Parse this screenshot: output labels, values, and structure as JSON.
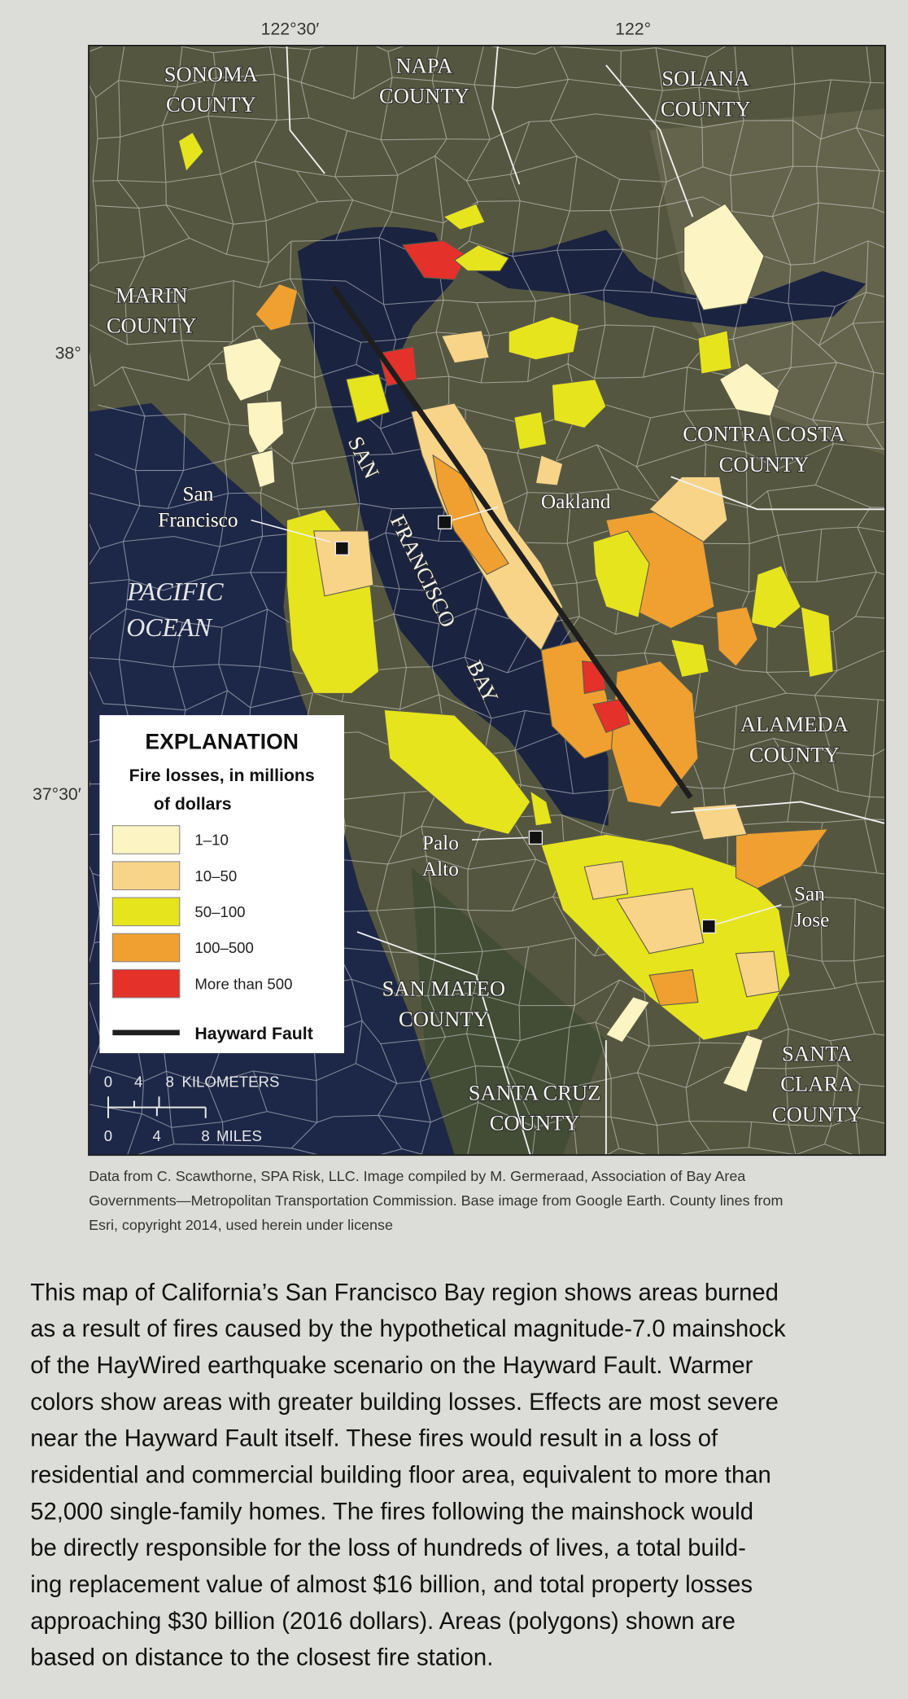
{
  "map": {
    "longitude_labels": [
      "122°30′",
      "122°"
    ],
    "latitude_labels": [
      "38°",
      "37°30′"
    ],
    "county_labels": [
      [
        "SONOMA",
        "COUNTY"
      ],
      [
        "NAPA",
        "COUNTY"
      ],
      [
        "SOLANA",
        "COUNTY"
      ],
      [
        "MARIN",
        "COUNTY"
      ],
      [
        "CONTRA COSTA",
        "COUNTY"
      ],
      [
        "ALAMEDA",
        "COUNTY"
      ],
      [
        "SAN MATEO",
        "COUNTY"
      ],
      [
        "SANTA CRUZ",
        "COUNTY"
      ],
      [
        "SANTA",
        "CLARA",
        "COUNTY"
      ]
    ],
    "city_labels": [
      [
        "San",
        "Francisco"
      ],
      [
        "Oakland"
      ],
      [
        "Palo",
        "Alto"
      ],
      [
        "San",
        "Jose"
      ]
    ],
    "ocean_label": [
      "PACIFIC",
      "OCEAN"
    ],
    "bay_label": [
      "SAN",
      "FRANCISCO",
      "BAY"
    ]
  },
  "legend": {
    "title": "EXPLANATION",
    "subtitle": [
      "Fire losses, in millions",
      "of dollars"
    ],
    "items": [
      {
        "label": "1–10",
        "color": "#fcf4c2"
      },
      {
        "label": "10–50",
        "color": "#f8d488"
      },
      {
        "label": "50–100",
        "color": "#e6e41c"
      },
      {
        "label": "100–500",
        "color": "#efa030"
      },
      {
        "label": "More than 500",
        "color": "#e4312a"
      }
    ],
    "fault": {
      "label": "Hayward Fault",
      "color": "#1e1e1e"
    }
  },
  "scale_bar": {
    "kilometers": [
      "0",
      "4",
      "8",
      "KILOMETERS"
    ],
    "miles": [
      "0",
      "4",
      "8",
      "MILES"
    ]
  },
  "caption": [
    "Data from C. Scawthorne, SPA Risk, LLC. Image compiled by M. Germeraad, Association of Bay Area",
    "Governments—Metropolitan Transportation Commission. Base image from Google Earth. County lines from",
    "Esri, copyright 2014, used herein under license"
  ],
  "body": [
    "This map of California’s San Francisco Bay region shows areas burned",
    "as a result of fires caused by the hypothetical magnitude-7.0 mainshock",
    "of the HayWired earthquake scenario on the Hayward Fault. Warmer",
    "colors show areas with greater building losses. Effects are most severe",
    "near the Hayward Fault itself. These fires would result in a loss of",
    "residential and commercial building floor area, equivalent to more than",
    "52,000 single-family homes. The fires following the mainshock would",
    "be directly responsible for the loss of hundreds of lives, a total build-",
    "ing replacement value of almost $16 billion, and total property losses",
    "approaching $30 billion (2016 dollars). Areas (polygons) shown are",
    "based on distance to the closest fire station."
  ]
}
